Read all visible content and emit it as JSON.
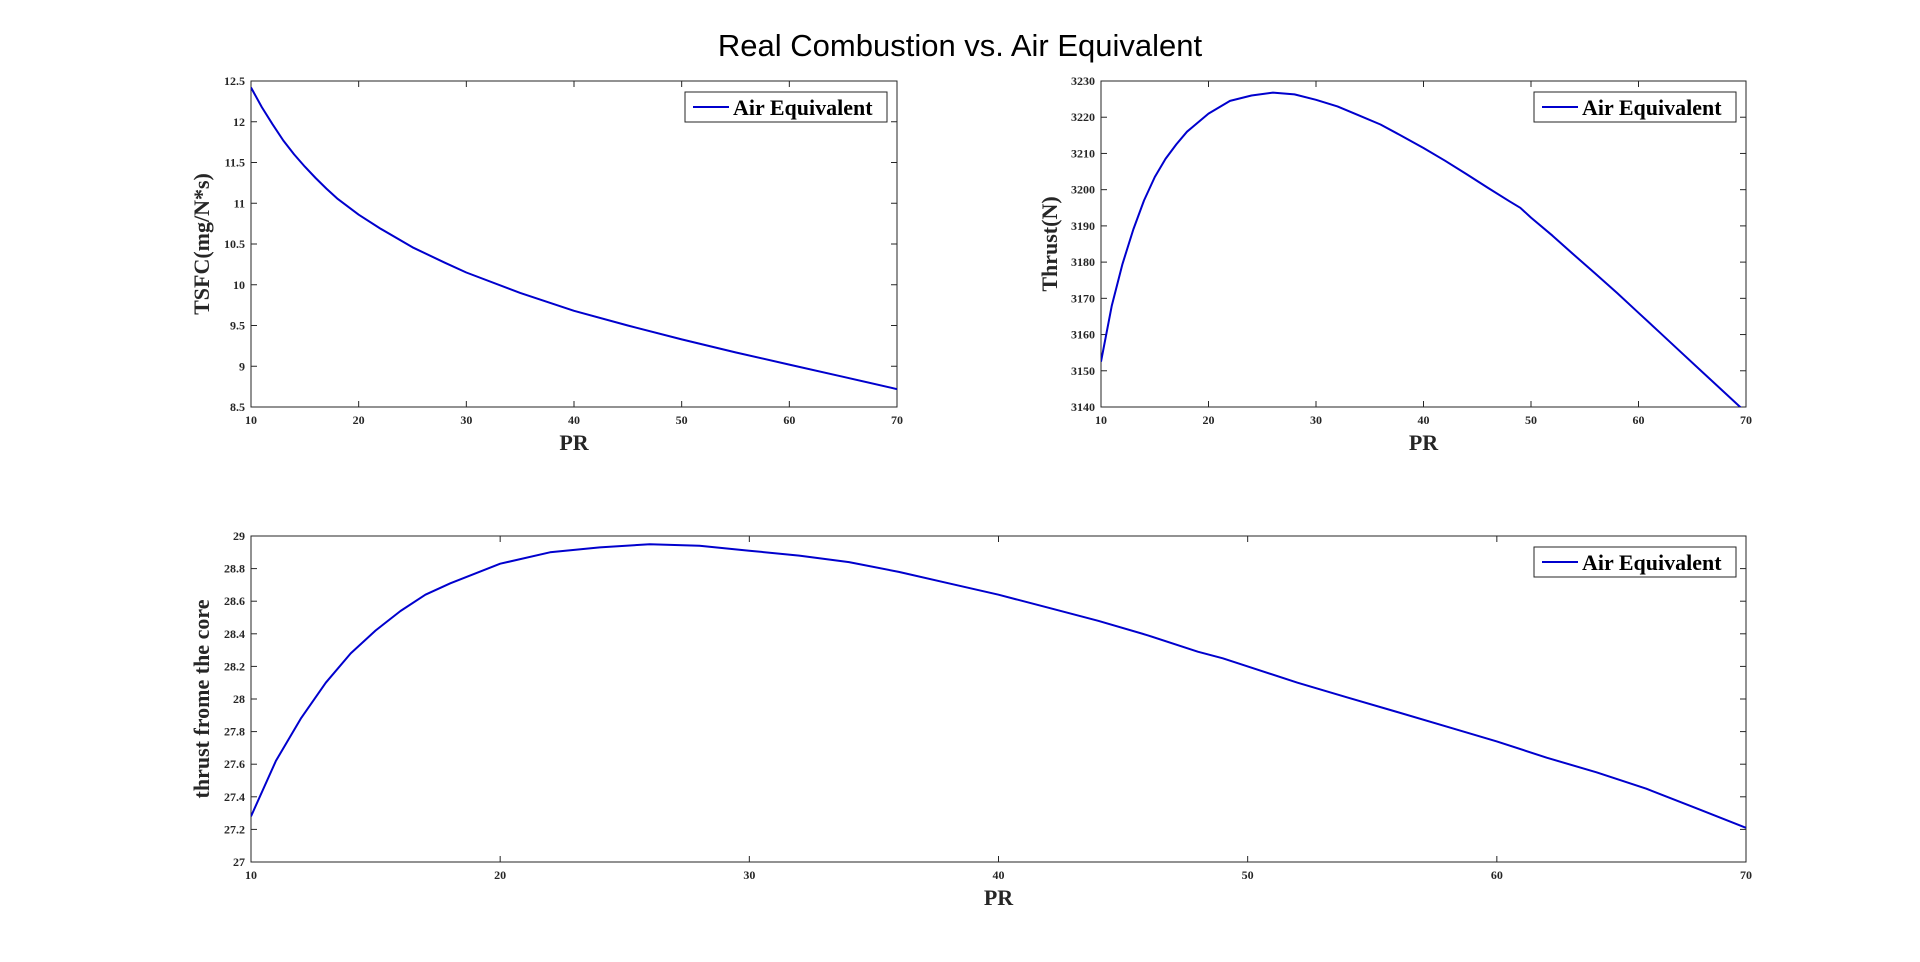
{
  "figure": {
    "suptitle": "Real Combustion vs. Air Equivalent",
    "line_color": "#0000cd",
    "legend_location": "top-right"
  },
  "chart_data": [
    {
      "type": "line",
      "xlabel": "PR",
      "ylabel": "TSFC(mg/N*s)",
      "xlim": [
        10,
        70
      ],
      "ylim": [
        8.5,
        12.5
      ],
      "xticks": [
        10,
        20,
        30,
        40,
        50,
        60,
        70
      ],
      "yticks": [
        8.5,
        9,
        9.5,
        10,
        10.5,
        11,
        11.5,
        12,
        12.5
      ],
      "grid": false,
      "series": [
        {
          "name": "Air Equivalent",
          "x": [
            10,
            11,
            12,
            13,
            14,
            15,
            16,
            17,
            18,
            20,
            22,
            25,
            28,
            30,
            35,
            40,
            45,
            50,
            55,
            60,
            65,
            70
          ],
          "y": [
            12.42,
            12.18,
            11.97,
            11.77,
            11.6,
            11.45,
            11.31,
            11.18,
            11.06,
            10.86,
            10.69,
            10.46,
            10.27,
            10.15,
            9.9,
            9.68,
            9.5,
            9.33,
            9.17,
            9.02,
            8.87,
            8.72
          ]
        }
      ]
    },
    {
      "type": "line",
      "xlabel": "PR",
      "ylabel": "Thrust(N)",
      "xlim": [
        10,
        70
      ],
      "ylim": [
        3140,
        3230
      ],
      "xticks": [
        10,
        20,
        30,
        40,
        50,
        60,
        70
      ],
      "yticks": [
        3140,
        3150,
        3160,
        3170,
        3180,
        3190,
        3200,
        3210,
        3220,
        3230
      ],
      "grid": false,
      "series": [
        {
          "name": "Air Equivalent",
          "x": [
            10,
            11,
            12,
            13,
            14,
            15,
            16,
            17,
            18,
            20,
            22,
            24,
            26,
            28,
            30,
            32,
            34,
            36,
            38,
            40,
            42,
            44,
            46,
            48,
            49,
            50,
            52,
            54,
            56,
            58,
            60,
            62,
            64,
            66,
            68,
            70
          ],
          "y": [
            3152.5,
            3168,
            3179.5,
            3189,
            3197,
            3203.5,
            3208.5,
            3212.5,
            3216,
            3221,
            3224.5,
            3226,
            3226.8,
            3226.3,
            3224.8,
            3223,
            3220.5,
            3218,
            3214.8,
            3211.5,
            3208,
            3204.3,
            3200.5,
            3196.8,
            3195,
            3192.3,
            3187.3,
            3182,
            3176.8,
            3171.5,
            3166,
            3160.5,
            3155,
            3149.5,
            3144,
            3138.5
          ]
        }
      ]
    },
    {
      "type": "line",
      "xlabel": "PR",
      "ylabel": "thrust frome the core",
      "xlim": [
        10,
        70
      ],
      "ylim": [
        27,
        29
      ],
      "xticks": [
        10,
        20,
        30,
        40,
        50,
        60,
        70
      ],
      "yticks": [
        27,
        27.2,
        27.4,
        27.6,
        27.8,
        28,
        28.2,
        28.4,
        28.6,
        28.8,
        29
      ],
      "grid": false,
      "series": [
        {
          "name": "Air Equivalent",
          "x": [
            10,
            11,
            12,
            13,
            14,
            15,
            16,
            17,
            18,
            20,
            22,
            24,
            26,
            28,
            30,
            32,
            34,
            36,
            38,
            40,
            42,
            44,
            46,
            48,
            49,
            50,
            52,
            54,
            56,
            58,
            60,
            62,
            64,
            66,
            68,
            70
          ],
          "y": [
            27.28,
            27.62,
            27.88,
            28.1,
            28.28,
            28.42,
            28.54,
            28.64,
            28.71,
            28.83,
            28.9,
            28.93,
            28.95,
            28.94,
            28.91,
            28.88,
            28.84,
            28.78,
            28.71,
            28.64,
            28.56,
            28.48,
            28.39,
            28.29,
            28.25,
            28.2,
            28.1,
            28.01,
            27.92,
            27.83,
            27.74,
            27.64,
            27.55,
            27.45,
            27.33,
            27.21
          ]
        }
      ]
    }
  ]
}
